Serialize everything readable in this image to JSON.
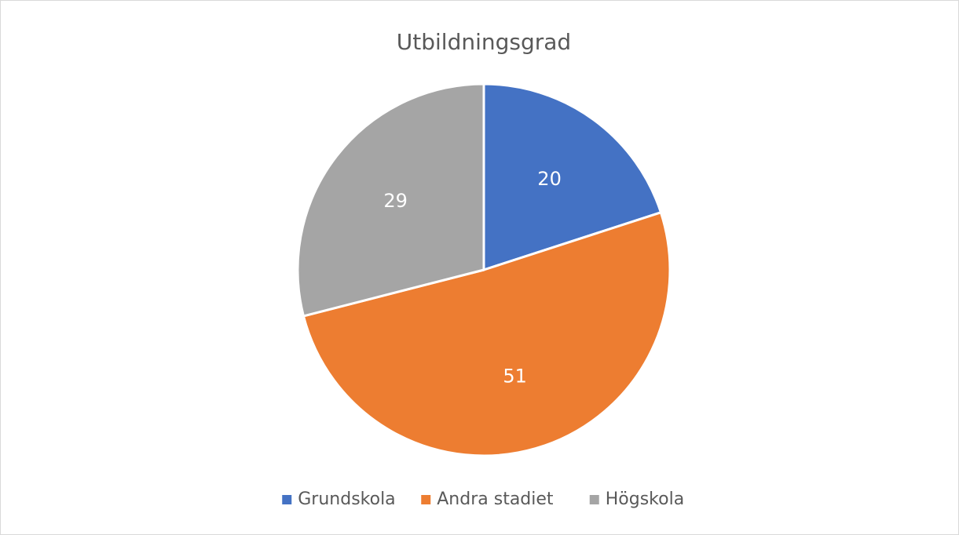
{
  "chart_data": {
    "type": "pie",
    "title": "Utbildningsgrad",
    "categories": [
      "Grundskola",
      "Andra stadiet",
      "Högskola"
    ],
    "values": [
      20,
      51,
      29
    ],
    "colors": [
      "#4472c4",
      "#ed7d31",
      "#a5a5a5"
    ],
    "legend": "bottom"
  }
}
